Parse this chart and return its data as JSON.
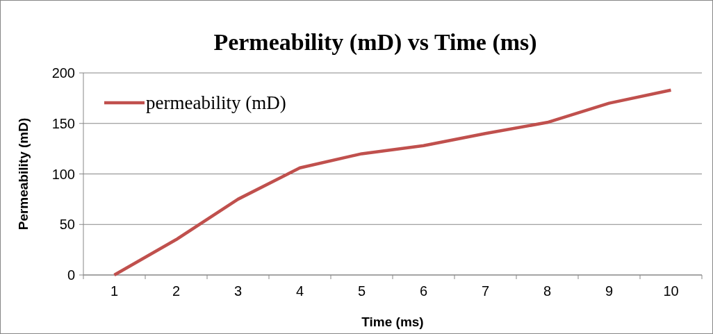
{
  "chart_data": {
    "type": "line",
    "title": "Permeability (mD) vs Time (ms)",
    "xlabel": "Time (ms)",
    "ylabel": "Permeability (mD)",
    "categories": [
      "1",
      "2",
      "3",
      "4",
      "5",
      "6",
      "7",
      "8",
      "9",
      "10"
    ],
    "series": [
      {
        "name": "permeability (mD)",
        "color": "#c0504d",
        "values": [
          0,
          35,
          75,
          106,
          120,
          128,
          140,
          151,
          170,
          183
        ]
      }
    ],
    "ylim": [
      0,
      200
    ],
    "yticks": [
      0,
      50,
      100,
      150,
      200
    ],
    "grid": "y",
    "legend": "top left",
    "marker": "none",
    "line_style": "solid"
  }
}
